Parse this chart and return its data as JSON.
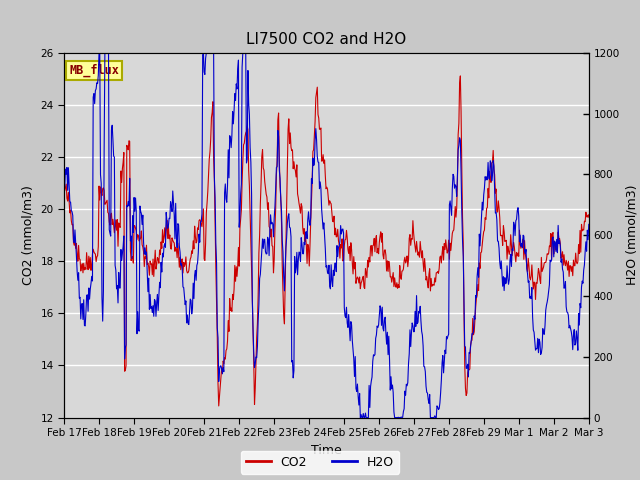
{
  "title": "LI7500 CO2 and H2O",
  "xlabel": "Time",
  "ylabel_left": "CO2 (mmol/m3)",
  "ylabel_right": "H2O (mmol/m3)",
  "ylim_left": [
    12,
    26
  ],
  "ylim_right": [
    0,
    1200
  ],
  "yticks_left": [
    12,
    14,
    16,
    18,
    20,
    22,
    24,
    26
  ],
  "yticks_right": [
    0,
    200,
    400,
    600,
    800,
    1000,
    1200
  ],
  "xtick_labels": [
    "Feb 17",
    "Feb 18",
    "Feb 19",
    "Feb 20",
    "Feb 21",
    "Feb 22",
    "Feb 23",
    "Feb 24",
    "Feb 25",
    "Feb 26",
    "Feb 27",
    "Feb 28",
    "Feb 29",
    "Mar 1",
    "Mar 2",
    "Mar 3"
  ],
  "co2_color": "#cc0000",
  "h2o_color": "#0000cc",
  "fig_facecolor": "#c8c8c8",
  "axes_facecolor": "#d8d8d8",
  "grid_color": "#ffffff",
  "textbox_label": "MB_flux",
  "textbox_facecolor": "#ffff99",
  "textbox_edgecolor": "#aaaa00",
  "textbox_textcolor": "#880000",
  "legend_co2": "CO2",
  "legend_h2o": "H2O",
  "title_fontsize": 11,
  "axis_fontsize": 9,
  "tick_fontsize": 7.5
}
